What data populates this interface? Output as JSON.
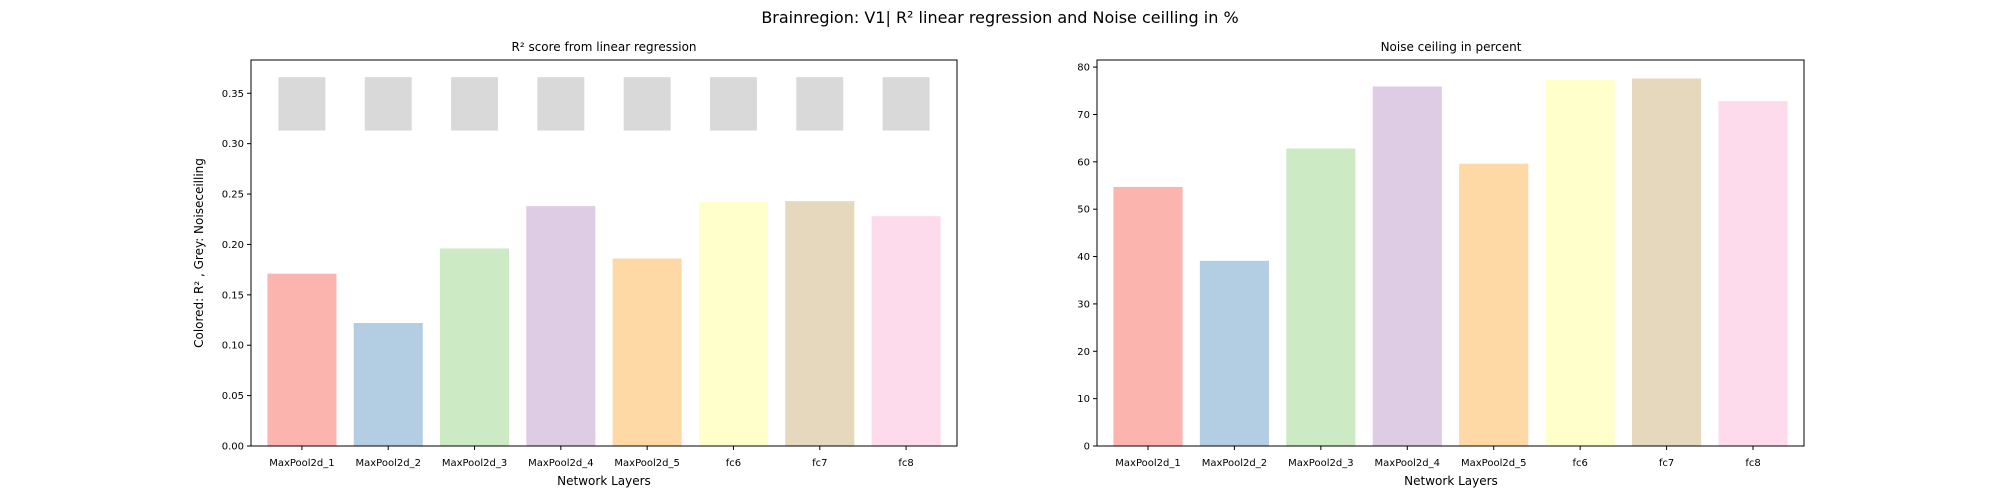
{
  "figure": {
    "suptitle": "Brainregion: V1| R² linear regression and Noise ceilling in %"
  },
  "colors": [
    "#fbb4ae",
    "#b3cde3",
    "#ccebc5",
    "#decbe4",
    "#fed9a6",
    "#ffffcc",
    "#e5d8bd",
    "#fddaec"
  ],
  "noise_color": "#d9d9d9",
  "chart_data": [
    {
      "type": "bar",
      "title": "R² score from linear regression",
      "xlabel": "Network Layers",
      "ylabel": "Colored: R² , Grey: Noiseceilling",
      "categories": [
        "MaxPool2d_1",
        "MaxPool2d_2",
        "MaxPool2d_3",
        "MaxPool2d_4",
        "MaxPool2d_5",
        "fc6",
        "fc7",
        "fc8"
      ],
      "series": [
        {
          "values": [
            0.171,
            0.122,
            0.196,
            0.238,
            0.186,
            0.242,
            0.243,
            0.228
          ]
        },
        {
          "ranges": [
            [
              0.313,
              0.366
            ],
            [
              0.313,
              0.366
            ],
            [
              0.313,
              0.366
            ],
            [
              0.313,
              0.366
            ],
            [
              0.313,
              0.366
            ],
            [
              0.313,
              0.366
            ],
            [
              0.313,
              0.366
            ],
            [
              0.313,
              0.366
            ]
          ]
        }
      ],
      "ylim": [
        0,
        0.383
      ],
      "yticks": [
        "0.00",
        "0.05",
        "0.10",
        "0.15",
        "0.20",
        "0.25",
        "0.30",
        "0.35"
      ],
      "ytick_values": [
        0,
        0.05,
        0.1,
        0.15,
        0.2,
        0.25,
        0.3,
        0.35
      ],
      "grid": false
    },
    {
      "type": "bar",
      "title": "Noise ceiling in percent",
      "xlabel": "Network Layers",
      "ylabel": "",
      "categories": [
        "MaxPool2d_1",
        "MaxPool2d_2",
        "MaxPool2d_3",
        "MaxPool2d_4",
        "MaxPool2d_5",
        "fc6",
        "fc7",
        "fc8"
      ],
      "series": [
        {
          "values": [
            54.7,
            39.1,
            62.8,
            75.9,
            59.6,
            77.3,
            77.6,
            72.8
          ]
        }
      ],
      "ylim": [
        0,
        81.5
      ],
      "yticks": [
        "0",
        "10",
        "20",
        "30",
        "40",
        "50",
        "60",
        "70",
        "80"
      ],
      "ytick_values": [
        0,
        10,
        20,
        30,
        40,
        50,
        60,
        70,
        80
      ],
      "grid": false
    }
  ]
}
